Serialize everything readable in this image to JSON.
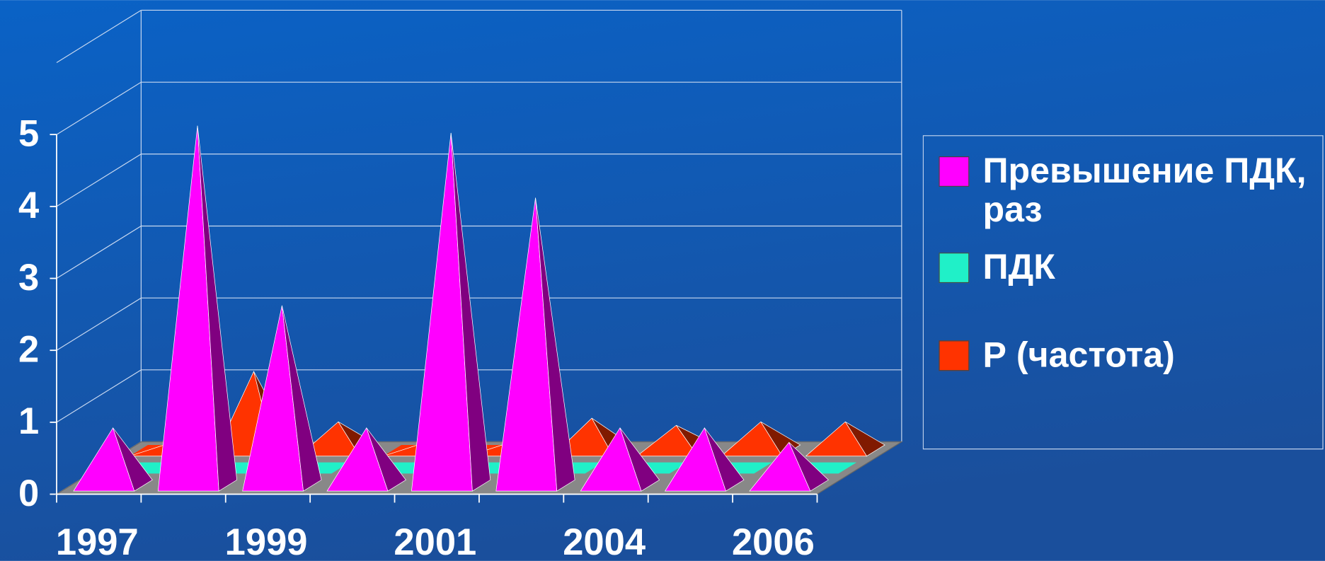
{
  "chart_data": {
    "type": "pyramid3d",
    "categories": [
      "1997",
      null,
      "1999",
      null,
      "2001",
      null,
      "2004",
      null,
      "2006"
    ],
    "series": [
      {
        "name": "Превышение ПДК, раз",
        "color": "#ff00ff",
        "values": [
          0.8,
          5.0,
          2.5,
          0.8,
          4.9,
          4.0,
          0.8,
          0.8,
          0.6
        ]
      },
      {
        "name": "ПДК",
        "color": "#20f0c8",
        "values": [
          0,
          0,
          0,
          0,
          0,
          0,
          0,
          0,
          0
        ]
      },
      {
        "name": "Р (частота)",
        "color": "#ff3300",
        "values": [
          0.1,
          1.1,
          0.4,
          0.1,
          0.1,
          0.45,
          0.35,
          0.4,
          0.4
        ]
      }
    ],
    "ylim": [
      0,
      6
    ],
    "yticks": [
      0,
      1,
      2,
      3,
      4,
      5
    ],
    "grid": true,
    "legend": "right"
  }
}
